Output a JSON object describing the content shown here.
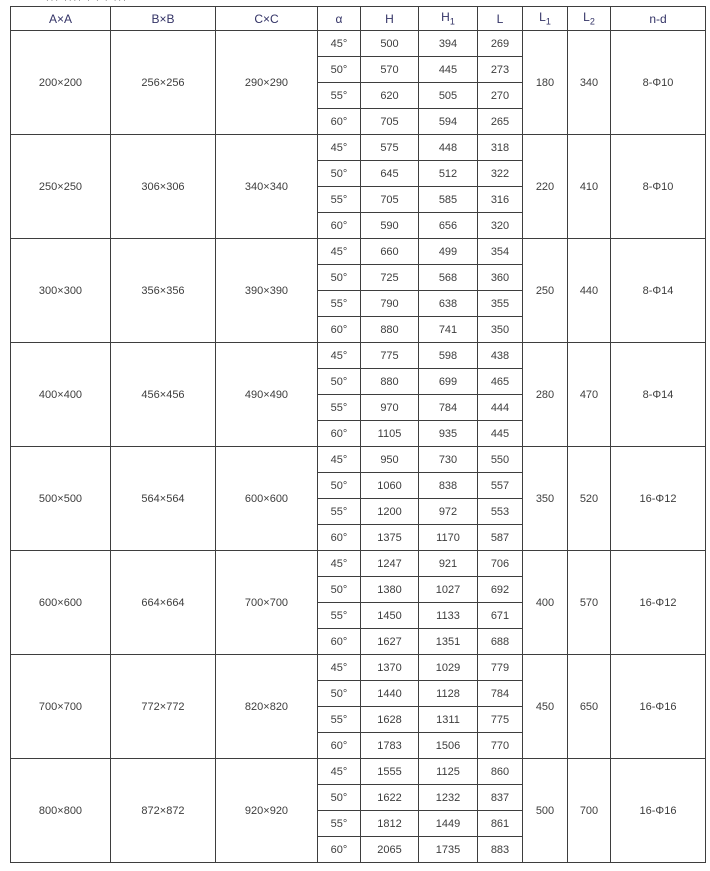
{
  "page": {
    "cropped_text_fragment": "··· ···· · · · ···"
  },
  "colors": {
    "border": "#3e3e3e",
    "header_text": "#333366",
    "body_text": "#3d3d3d",
    "background": "#ffffff"
  },
  "table": {
    "headers": [
      {
        "base": "A×A",
        "sub": ""
      },
      {
        "base": "B×B",
        "sub": ""
      },
      {
        "base": "C×C",
        "sub": ""
      },
      {
        "base": "α",
        "sub": ""
      },
      {
        "base": "H",
        "sub": ""
      },
      {
        "base": "H",
        "sub": "1"
      },
      {
        "base": "L",
        "sub": ""
      },
      {
        "base": "L",
        "sub": "1"
      },
      {
        "base": "L",
        "sub": "2"
      },
      {
        "base": "n-d",
        "sub": ""
      }
    ],
    "groups": [
      {
        "axa": "200×200",
        "bxb": "256×256",
        "cxc": "290×290",
        "l1": "180",
        "l2": "340",
        "nd": "8-Φ10",
        "rows": [
          [
            "45°",
            "500",
            "394",
            "269"
          ],
          [
            "50°",
            "570",
            "445",
            "273"
          ],
          [
            "55°",
            "620",
            "505",
            "270"
          ],
          [
            "60°",
            "705",
            "594",
            "265"
          ]
        ]
      },
      {
        "axa": "250×250",
        "bxb": "306×306",
        "cxc": "340×340",
        "l1": "220",
        "l2": "410",
        "nd": "8-Φ10",
        "rows": [
          [
            "45°",
            "575",
            "448",
            "318"
          ],
          [
            "50°",
            "645",
            "512",
            "322"
          ],
          [
            "55°",
            "705",
            "585",
            "316"
          ],
          [
            "60°",
            "590",
            "656",
            "320"
          ]
        ]
      },
      {
        "axa": "300×300",
        "bxb": "356×356",
        "cxc": "390×390",
        "l1": "250",
        "l2": "440",
        "nd": "8-Φ14",
        "rows": [
          [
            "45°",
            "660",
            "499",
            "354"
          ],
          [
            "50°",
            "725",
            "568",
            "360"
          ],
          [
            "55°",
            "790",
            "638",
            "355"
          ],
          [
            "60°",
            "880",
            "741",
            "350"
          ]
        ]
      },
      {
        "axa": "400×400",
        "bxb": "456×456",
        "cxc": "490×490",
        "l1": "280",
        "l2": "470",
        "nd": "8-Φ14",
        "rows": [
          [
            "45°",
            "775",
            "598",
            "438"
          ],
          [
            "50°",
            "880",
            "699",
            "465"
          ],
          [
            "55°",
            "970",
            "784",
            "444"
          ],
          [
            "60°",
            "1105",
            "935",
            "445"
          ]
        ]
      },
      {
        "axa": "500×500",
        "bxb": "564×564",
        "cxc": "600×600",
        "l1": "350",
        "l2": "520",
        "nd": "16-Φ12",
        "rows": [
          [
            "45°",
            "950",
            "730",
            "550"
          ],
          [
            "50°",
            "1060",
            "838",
            "557"
          ],
          [
            "55°",
            "1200",
            "972",
            "553"
          ],
          [
            "60°",
            "1375",
            "1170",
            "587"
          ]
        ]
      },
      {
        "axa": "600×600",
        "bxb": "664×664",
        "cxc": "700×700",
        "l1": "400",
        "l2": "570",
        "nd": "16-Φ12",
        "rows": [
          [
            "45°",
            "1247",
            "921",
            "706"
          ],
          [
            "50°",
            "1380",
            "1027",
            "692"
          ],
          [
            "55°",
            "1450",
            "1133",
            "671"
          ],
          [
            "60°",
            "1627",
            "1351",
            "688"
          ]
        ]
      },
      {
        "axa": "700×700",
        "bxb": "772×772",
        "cxc": "820×820",
        "l1": "450",
        "l2": "650",
        "nd": "16-Φ16",
        "rows": [
          [
            "45°",
            "1370",
            "1029",
            "779"
          ],
          [
            "50°",
            "1440",
            "1128",
            "784"
          ],
          [
            "55°",
            "1628",
            "1311",
            "775"
          ],
          [
            "60°",
            "1783",
            "1506",
            "770"
          ]
        ]
      },
      {
        "axa": "800×800",
        "bxb": "872×872",
        "cxc": "920×920",
        "l1": "500",
        "l2": "700",
        "nd": "16-Φ16",
        "rows": [
          [
            "45°",
            "1555",
            "1125",
            "860"
          ],
          [
            "50°",
            "1622",
            "1232",
            "837"
          ],
          [
            "55°",
            "1812",
            "1449",
            "861"
          ],
          [
            "60°",
            "2065",
            "1735",
            "883"
          ]
        ]
      }
    ]
  }
}
